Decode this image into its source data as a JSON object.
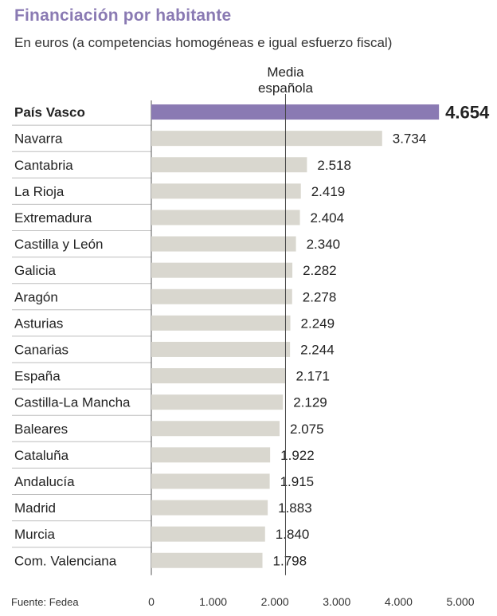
{
  "header": {
    "title": "Financiación por habitante",
    "subtitle": "En euros (a competencias homogéneas e igual esfuerzo fiscal)"
  },
  "footer": {
    "source": "Fuente: Fedea"
  },
  "colors": {
    "highlight": "#8a7ab3",
    "bar": "#d9d7cf",
    "divider": "#bdbdbd",
    "axis": "#555555"
  },
  "chart_data": {
    "type": "bar",
    "orientation": "horizontal",
    "categories": [
      "País Vasco",
      "Navarra",
      "Cantabria",
      "La Rioja",
      "Extremadura",
      "Castilla y León",
      "Galicia",
      "Aragón",
      "Asturias",
      "Canarias",
      "España",
      "Castilla-La Mancha",
      "Baleares",
      "Cataluña",
      "Andalucía",
      "Madrid",
      "Murcia",
      "Com. Valenciana"
    ],
    "values": [
      4654,
      3734,
      2518,
      2419,
      2404,
      2340,
      2282,
      2278,
      2249,
      2244,
      2171,
      2129,
      2075,
      1922,
      1915,
      1883,
      1840,
      1798
    ],
    "value_labels": [
      "4.654",
      "3.734",
      "2.518",
      "2.419",
      "2.404",
      "2.340",
      "2.282",
      "2.278",
      "2.249",
      "2.244",
      "2.171",
      "2.129",
      "2.075",
      "1.922",
      "1.915",
      "1.883",
      "1.840",
      "1.798"
    ],
    "highlight_index": 0,
    "xlim": [
      0,
      5000
    ],
    "xticks": [
      0,
      1000,
      2000,
      3000,
      4000,
      5000
    ],
    "xtick_labels": [
      "0",
      "1.000",
      "2.000",
      "3.000",
      "4.000",
      "5.000"
    ],
    "reference_line": {
      "value": 2171,
      "label_lines": [
        "Media",
        "española"
      ]
    },
    "title": "Financiación por habitante",
    "subtitle": "En euros (a competencias homogéneas e igual esfuerzo fiscal)",
    "grid": false
  }
}
